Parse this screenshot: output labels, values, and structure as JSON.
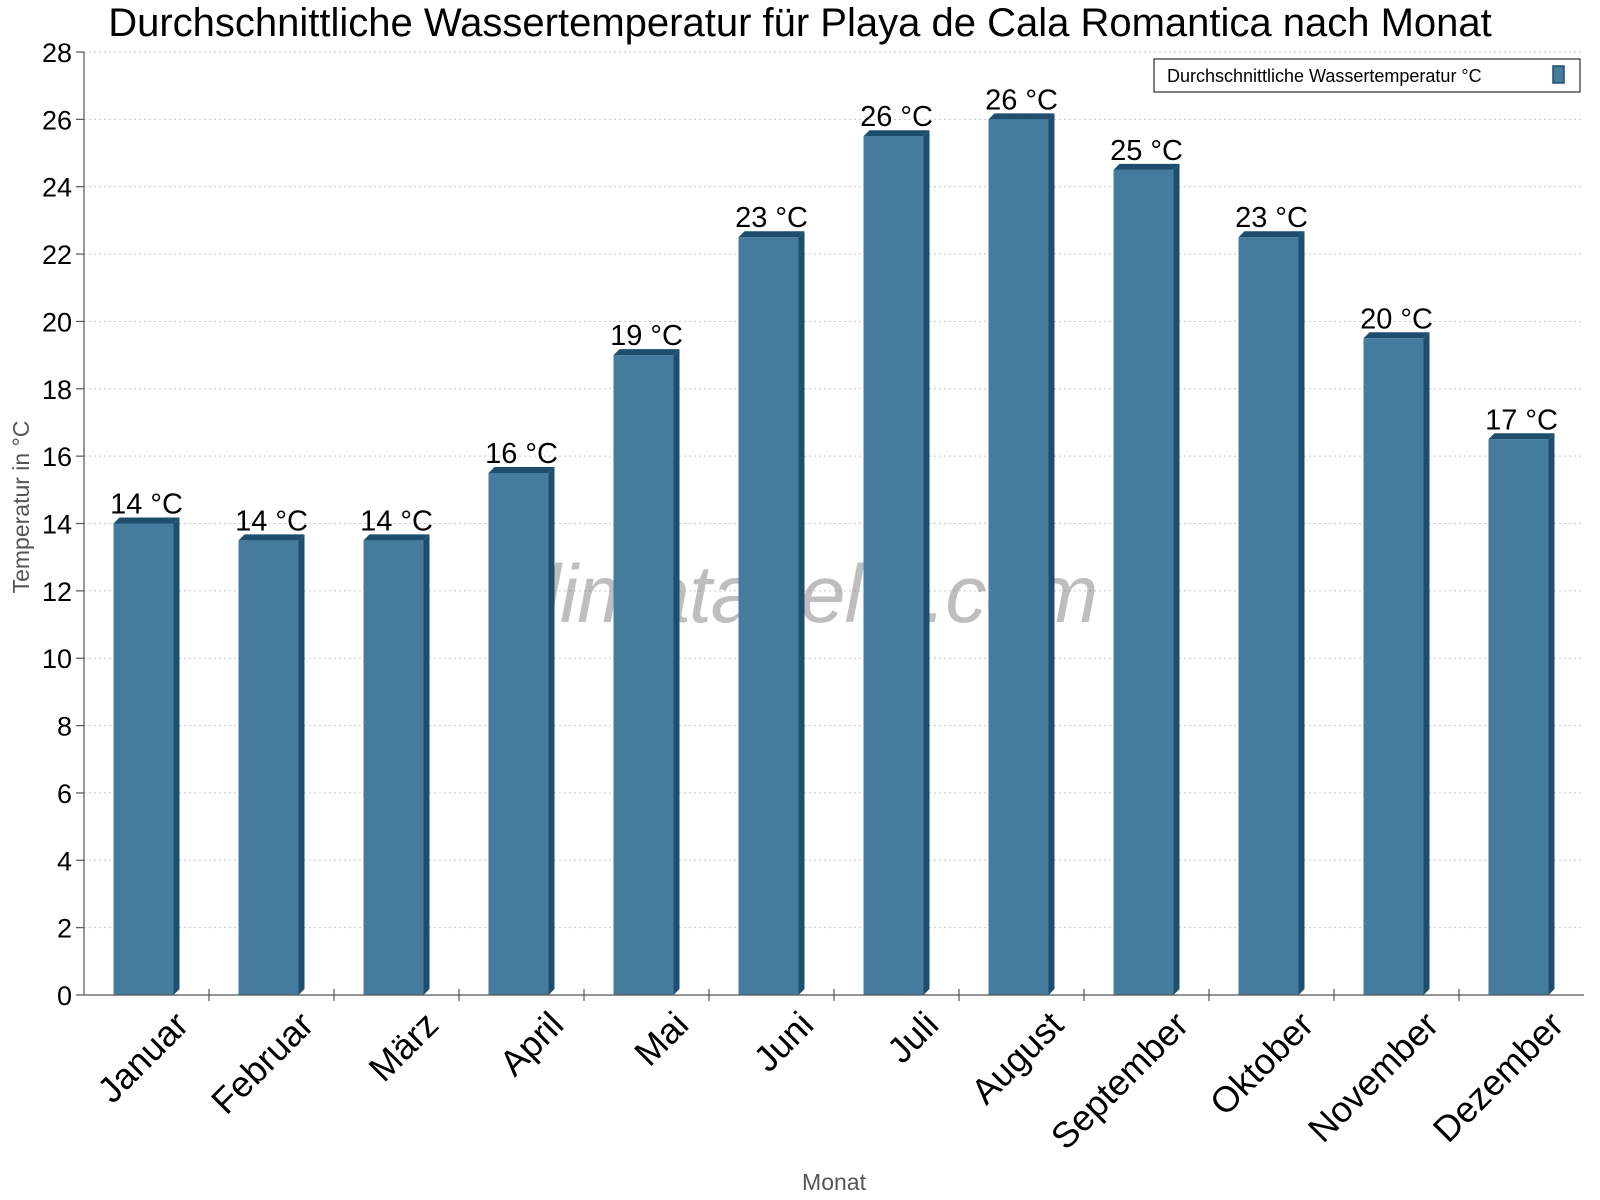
{
  "chart_data": {
    "type": "bar",
    "title": "Durchschnittliche Wassertemperatur für Playa de Cala Romantica nach Monat",
    "xlabel": "Monat",
    "ylabel": "Temperatur in °C",
    "ylim": [
      0,
      28
    ],
    "ytick_step": 2,
    "grid": true,
    "legend_position": "top-right",
    "categories": [
      "Januar",
      "Februar",
      "März",
      "April",
      "Mai",
      "Juni",
      "Juli",
      "August",
      "September",
      "Oktober",
      "November",
      "Dezember"
    ],
    "series": [
      {
        "name": "Durchschnittliche Wassertemperatur °C",
        "color": "#457b9d",
        "values": [
          14,
          13.5,
          13.5,
          15.5,
          19,
          22.5,
          25.5,
          26,
          24.5,
          22.5,
          19.5,
          16.5
        ],
        "labels": [
          "14 °C",
          "14 °C",
          "14 °C",
          "16 °C",
          "19 °C",
          "23 °C",
          "26 °C",
          "26 °C",
          "25 °C",
          "23 °C",
          "20 °C",
          "17 °C"
        ]
      }
    ],
    "watermark": "klimatabelle.com"
  },
  "colors": {
    "bar_front": "#457b9d",
    "bar_side": "#1d4e6e",
    "bar_top": "#1d4e6e"
  }
}
